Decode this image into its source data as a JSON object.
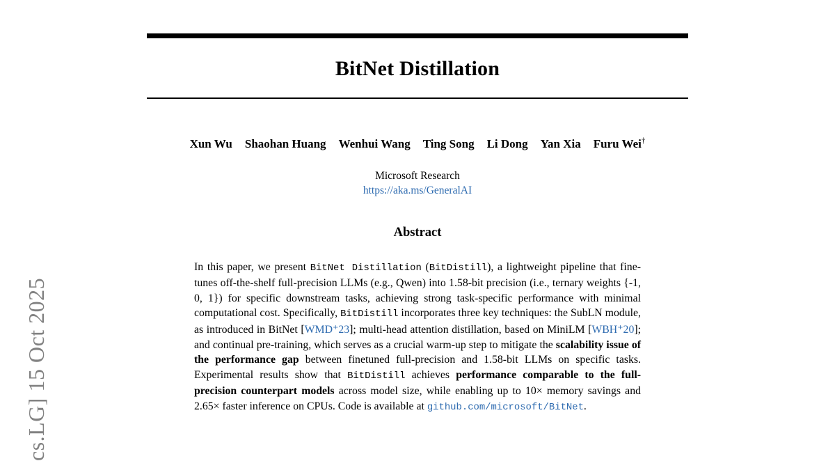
{
  "watermark": {
    "text": "cs.LG]  15 Oct 2025"
  },
  "paper": {
    "title": "BitNet Distillation",
    "affiliation": "Microsoft Research",
    "link": "https://aka.ms/GeneralAI",
    "dagger": "†"
  },
  "authors": [
    "Xun Wu",
    "Shaohan Huang",
    "Wenhui Wang",
    "Ting Song",
    "Li Dong",
    "Yan Xia",
    "Furu Wei"
  ],
  "abstract": {
    "heading": "Abstract",
    "segments": [
      {
        "name": "abstract-text",
        "style": "normal",
        "text": "In this paper, we present "
      },
      {
        "name": "bitnet-distillation-term",
        "style": "mono",
        "text": "BitNet Distillation"
      },
      {
        "name": "abstract-text",
        "style": "normal",
        "text": " ("
      },
      {
        "name": "bitdistill-term",
        "style": "mono",
        "text": "BitDistill"
      },
      {
        "name": "abstract-text",
        "style": "normal",
        "text": "), a lightweight pipeline that fine-tunes off-the-shelf full-precision LLMs (e.g., Qwen) into 1.58-bit precision (i.e., ternary weights {-1, 0, 1}) for specific downstream tasks, achieving strong task-specific performance with minimal computational cost. Specifically, "
      },
      {
        "name": "bitdistill-term",
        "style": "mono",
        "text": "BitDistill"
      },
      {
        "name": "abstract-text",
        "style": "normal",
        "text": " incorporates three key techniques: the SubLN module, as introduced in BitNet ["
      },
      {
        "name": "citation-wmd23",
        "style": "cite",
        "text": "WMD⁺23"
      },
      {
        "name": "abstract-text",
        "style": "normal",
        "text": "]; multi-head attention distillation, based on MiniLM ["
      },
      {
        "name": "citation-wbh20",
        "style": "cite",
        "text": "WBH⁺20"
      },
      {
        "name": "abstract-text",
        "style": "normal",
        "text": "]; and continual pre-training, which serves as a crucial warm-up step to mitigate the "
      },
      {
        "name": "abstract-bold-phrase",
        "style": "bold",
        "text": "scalability issue of the performance gap"
      },
      {
        "name": "abstract-text",
        "style": "normal",
        "text": " between finetuned full-precision and 1.58-bit LLMs on specific tasks. Experimental results show that "
      },
      {
        "name": "bitdistill-term",
        "style": "mono",
        "text": "BitDistill"
      },
      {
        "name": "abstract-text",
        "style": "normal",
        "text": " achieves "
      },
      {
        "name": "abstract-bold-phrase",
        "style": "bold",
        "text": "performance comparable to the full-precision counterpart models"
      },
      {
        "name": "abstract-text",
        "style": "normal",
        "text": " across model size, while enabling up to 10× memory savings and 2.65× faster inference on CPUs. Code is available at "
      },
      {
        "name": "github-link",
        "style": "mono-link",
        "text": "github.com/microsoft/BitNet"
      },
      {
        "name": "abstract-text",
        "style": "normal",
        "text": "."
      }
    ]
  },
  "colors": {
    "link_blue": "#2e6bb0",
    "watermark_gray": "#828282",
    "rule_black": "#000000"
  }
}
